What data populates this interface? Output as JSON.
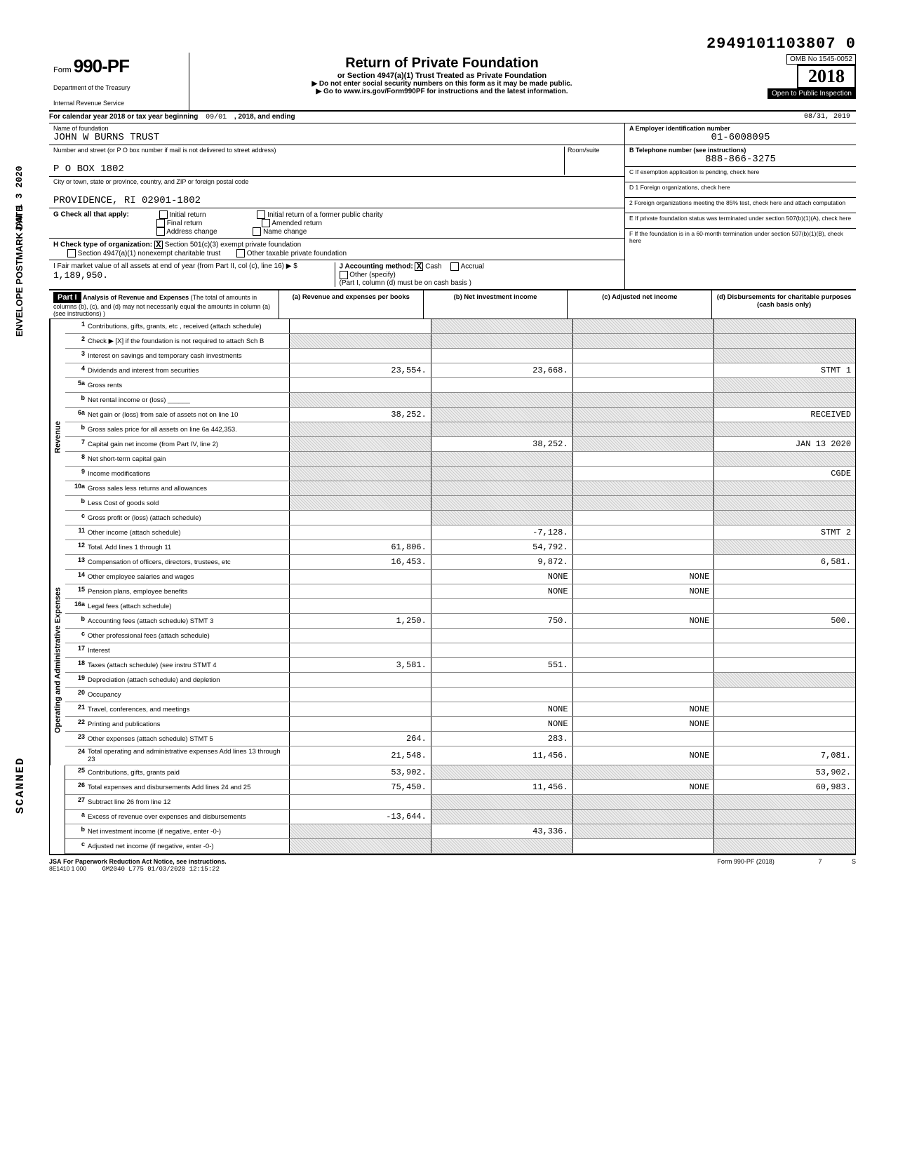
{
  "header": {
    "form_prefix": "Form",
    "form_number": "990-PF",
    "dept_line1": "Department of the Treasury",
    "dept_line2": "Internal Revenue Service",
    "title": "Return of Private Foundation",
    "subtitle": "or Section 4947(a)(1) Trust Treated as Private Foundation",
    "instr1": "▶ Do not enter social security numbers on this form as it may be made public.",
    "instr2": "▶ Go to www.irs.gov/Form990PF for instructions and the latest information.",
    "dln": "2949101103807 0",
    "omb": "OMB No 1545-0052",
    "year": "2018",
    "inspection": "Open to Public Inspection"
  },
  "calendar": {
    "prefix": "For calendar year 2018 or tax year beginning",
    "begin": "09/01",
    "mid": ", 2018, and ending",
    "end": "08/31, 2019"
  },
  "entity": {
    "name_label": "Name of foundation",
    "name": "JOHN W BURNS TRUST",
    "addr_label": "Number and street (or P O box number if mail is not delivered to street address)",
    "addr": "P O BOX 1802",
    "city_label": "City or town, state or province, country, and ZIP or foreign postal code",
    "city": "PROVIDENCE, RI 02901-1802",
    "room_label": "Room/suite",
    "ein_label": "A  Employer identification number",
    "ein": "01-6008095",
    "phone_label": "B  Telephone number (see instructions)",
    "phone": "888-866-3275",
    "c_label": "C  If exemption application is pending, check here",
    "d1": "D 1 Foreign organizations, check here",
    "d2": "2 Foreign organizations meeting the 85% test, check here and attach computation",
    "e": "E  If private foundation status was terminated under section 507(b)(1)(A), check here",
    "f": "F  If the foundation is in a 60-month termination under section 507(b)(1)(B), check here"
  },
  "checks": {
    "g_label": "G  Check all that apply:",
    "g_opts": [
      "Initial return",
      "Final return",
      "Address change",
      "Initial return of a former public charity",
      "Amended return",
      "Name change"
    ],
    "h_label": "H  Check type of organization:",
    "h1": "Section 501(c)(3) exempt private foundation",
    "h1_checked": "X",
    "h2": "Section 4947(a)(1) nonexempt charitable trust",
    "h3": "Other taxable private foundation",
    "i_label": "I  Fair market value of all assets at end of year (from Part II, col (c), line 16) ▶ $",
    "i_value": "1,189,950.",
    "j_label": "J  Accounting method:",
    "j_cash": "Cash",
    "j_cash_checked": "X",
    "j_accrual": "Accrual",
    "j_other": "Other (specify)",
    "j_note": "(Part I, column (d) must be on cash basis )"
  },
  "part1": {
    "tag": "Part I",
    "title": "Analysis of Revenue and Expenses",
    "note": "(The total of amounts in columns (b), (c), and (d) may not necessarily equal the amounts in column (a) (see instructions) )",
    "cols": {
      "a": "(a) Revenue and expenses per books",
      "b": "(b) Net investment income",
      "c": "(c) Adjusted net income",
      "d": "(d) Disbursements for charitable purposes (cash basis only)"
    }
  },
  "side": {
    "revenue": "Revenue",
    "ops": "Operating and Administrative Expenses",
    "envelope": "ENVELOPE POSTMARK DATE",
    "jan": "JAN 1 3 2020",
    "scanned": "SCANNED"
  },
  "lines": [
    {
      "n": "1",
      "label": "Contributions, gifts, grants, etc , received (attach schedule)",
      "a": "",
      "b": "–shade–",
      "c": "–shade–",
      "d": "–shade–"
    },
    {
      "n": "2",
      "label": "Check ▶ [X] if the foundation is not required to attach Sch B",
      "a": "–shade–",
      "b": "–shade–",
      "c": "–shade–",
      "d": "–shade–"
    },
    {
      "n": "3",
      "label": "Interest on savings and temporary cash investments",
      "a": "",
      "b": "",
      "c": "",
      "d": "–shade–"
    },
    {
      "n": "4",
      "label": "Dividends and interest from securities",
      "a": "23,554.",
      "b": "23,668.",
      "c": "",
      "d": "STMT 1"
    },
    {
      "n": "5a",
      "label": "Gross rents",
      "a": "",
      "b": "",
      "c": "",
      "d": "–shade–"
    },
    {
      "n": "b",
      "label": "Net rental income or (loss) ______",
      "a": "–shade–",
      "b": "–shade–",
      "c": "–shade–",
      "d": "–shade–"
    },
    {
      "n": "6a",
      "label": "Net gain or (loss) from sale of assets not on line 10",
      "a": "38,252.",
      "b": "–shade–",
      "c": "–shade–",
      "d": "RECEIVED"
    },
    {
      "n": "b",
      "label": "Gross sales price for all assets on line 6a   442,353.",
      "a": "–shade–",
      "b": "–shade–",
      "c": "–shade–",
      "d": "–shade–"
    },
    {
      "n": "7",
      "label": "Capital gain net income (from Part IV, line 2)",
      "a": "–shade–",
      "b": "38,252.",
      "c": "–shade–",
      "d": "JAN 13 2020"
    },
    {
      "n": "8",
      "label": "Net short-term capital gain",
      "a": "–shade–",
      "b": "–shade–",
      "c": "",
      "d": "–shade–"
    },
    {
      "n": "9",
      "label": "Income modifications",
      "a": "–shade–",
      "b": "–shade–",
      "c": "",
      "d": "CGDE"
    },
    {
      "n": "10a",
      "label": "Gross sales less returns and allowances",
      "a": "–shade–",
      "b": "–shade–",
      "c": "–shade–",
      "d": "–shade–"
    },
    {
      "n": "b",
      "label": "Less Cost of goods sold",
      "a": "–shade–",
      "b": "–shade–",
      "c": "–shade–",
      "d": "–shade–"
    },
    {
      "n": "c",
      "label": "Gross profit or (loss) (attach schedule)",
      "a": "",
      "b": "–shade–",
      "c": "",
      "d": "–shade–"
    },
    {
      "n": "11",
      "label": "Other income (attach schedule)",
      "a": "",
      "b": "-7,128.",
      "c": "",
      "d": "STMT 2"
    },
    {
      "n": "12",
      "label": "Total. Add lines 1 through 11",
      "a": "61,806.",
      "b": "54,792.",
      "c": "",
      "d": "–shade–"
    },
    {
      "n": "13",
      "label": "Compensation of officers, directors, trustees, etc",
      "a": "16,453.",
      "b": "9,872.",
      "c": "",
      "d": "6,581."
    },
    {
      "n": "14",
      "label": "Other employee salaries and wages",
      "a": "",
      "b": "NONE",
      "c": "NONE",
      "d": ""
    },
    {
      "n": "15",
      "label": "Pension plans, employee benefits",
      "a": "",
      "b": "NONE",
      "c": "NONE",
      "d": ""
    },
    {
      "n": "16a",
      "label": "Legal fees (attach schedule)",
      "a": "",
      "b": "",
      "c": "",
      "d": ""
    },
    {
      "n": "b",
      "label": "Accounting fees (attach schedule) STMT 3",
      "a": "1,250.",
      "b": "750.",
      "c": "NONE",
      "d": "500."
    },
    {
      "n": "c",
      "label": "Other professional fees (attach schedule)",
      "a": "",
      "b": "",
      "c": "",
      "d": ""
    },
    {
      "n": "17",
      "label": "Interest",
      "a": "",
      "b": "",
      "c": "",
      "d": ""
    },
    {
      "n": "18",
      "label": "Taxes (attach schedule) (see instru STMT 4",
      "a": "3,581.",
      "b": "551.",
      "c": "",
      "d": ""
    },
    {
      "n": "19",
      "label": "Depreciation (attach schedule) and depletion",
      "a": "",
      "b": "",
      "c": "",
      "d": "–shade–"
    },
    {
      "n": "20",
      "label": "Occupancy",
      "a": "",
      "b": "",
      "c": "",
      "d": ""
    },
    {
      "n": "21",
      "label": "Travel, conferences, and meetings",
      "a": "",
      "b": "NONE",
      "c": "NONE",
      "d": ""
    },
    {
      "n": "22",
      "label": "Printing and publications",
      "a": "",
      "b": "NONE",
      "c": "NONE",
      "d": ""
    },
    {
      "n": "23",
      "label": "Other expenses (attach schedule) STMT 5",
      "a": "264.",
      "b": "283.",
      "c": "",
      "d": ""
    },
    {
      "n": "24",
      "label": "Total operating and administrative expenses Add lines 13 through 23",
      "a": "21,548.",
      "b": "11,456.",
      "c": "NONE",
      "d": "7,081."
    },
    {
      "n": "25",
      "label": "Contributions, gifts, grants paid",
      "a": "53,902.",
      "b": "–shade–",
      "c": "–shade–",
      "d": "53,902."
    },
    {
      "n": "26",
      "label": "Total expenses and disbursements Add lines 24 and 25",
      "a": "75,450.",
      "b": "11,456.",
      "c": "NONE",
      "d": "60,983."
    },
    {
      "n": "27",
      "label": "Subtract line 26 from line 12",
      "a": "",
      "b": "–shade–",
      "c": "–shade–",
      "d": "–shade–"
    },
    {
      "n": "a",
      "label": "Excess of revenue over expenses and disbursements",
      "a": "-13,644.",
      "b": "–shade–",
      "c": "–shade–",
      "d": "–shade–"
    },
    {
      "n": "b",
      "label": "Net investment income (if negative, enter -0-)",
      "a": "–shade–",
      "b": "43,336.",
      "c": "–shade–",
      "d": "–shade–"
    },
    {
      "n": "c",
      "label": "Adjusted net income (if negative, enter -0-)",
      "a": "–shade–",
      "b": "–shade–",
      "c": "",
      "d": "–shade–"
    }
  ],
  "footer": {
    "jsa": "JSA",
    "paperwork": "For Paperwork Reduction Act Notice, see instructions.",
    "code": "8E1410 1 000",
    "stamp": "GM2040 L775 01/03/2020 12:15:22",
    "form": "Form 990-PF (2018)",
    "page": "7",
    "s": "S"
  }
}
